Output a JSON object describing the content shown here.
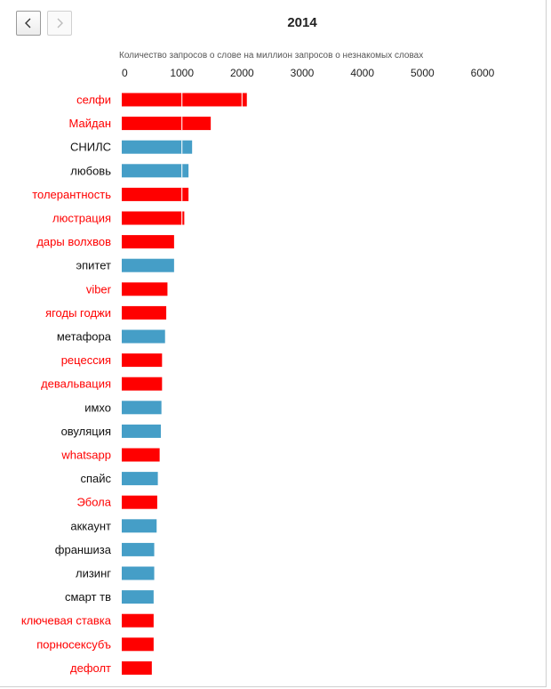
{
  "nav": {
    "prev_icon": "chevron-left-icon",
    "next_icon": "chevron-right-icon"
  },
  "year": "2014",
  "colors": {
    "new_word": "#ff0000",
    "known_word": "#459ec7",
    "label_known": "#111111"
  },
  "chart_data": {
    "type": "bar",
    "orientation": "horizontal",
    "axis_title": "Количество запросов о слове на миллион запросов о незнакомых словах",
    "x_ticks": [
      "0",
      "1000",
      "2000",
      "3000",
      "4000",
      "5000",
      "6000"
    ],
    "xlim": [
      0,
      6000
    ],
    "axis_position": "top",
    "grid": false,
    "categories": [
      "селфи",
      "Майдан",
      "СНИЛС",
      "любовь",
      "толерантность",
      "люстрация",
      "дары волхвов",
      "эпитет",
      "viber",
      "ягоды годжи",
      "метафора",
      "рецессия",
      "девальвация",
      "имхо",
      "овуляция",
      "whatsapp",
      "спайс",
      "Эбола",
      "аккаунт",
      "франшиза",
      "лизинг",
      "смарт тв",
      "ключевая ставка",
      "порносексубъ",
      "дефолт"
    ],
    "values": [
      2080,
      1480,
      1170,
      1110,
      1110,
      1040,
      870,
      870,
      760,
      740,
      720,
      670,
      670,
      660,
      650,
      630,
      600,
      590,
      580,
      540,
      540,
      530,
      530,
      530,
      500
    ],
    "groups": [
      "new",
      "new",
      "known",
      "known",
      "new",
      "new",
      "new",
      "known",
      "new",
      "new",
      "known",
      "new",
      "new",
      "known",
      "known",
      "new",
      "known",
      "new",
      "known",
      "known",
      "known",
      "known",
      "new",
      "new",
      "new"
    ]
  }
}
